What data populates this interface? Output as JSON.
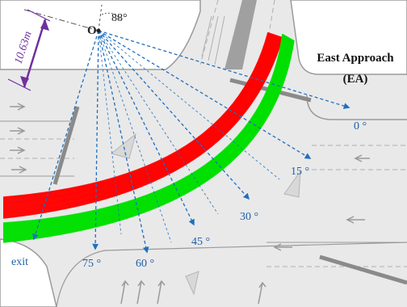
{
  "origin": {
    "label": "O",
    "angle_label": "88°"
  },
  "distance": {
    "label": "10.63m",
    "color": "#7030A0"
  },
  "approach": {
    "line1": "East Approach",
    "line2": "(EA)"
  },
  "exit_label": "exit",
  "angles": [
    {
      "label": "0 °"
    },
    {
      "label": "15 °"
    },
    {
      "label": "30 °"
    },
    {
      "label": "45 °"
    },
    {
      "label": "60 °"
    },
    {
      "label": "75 °"
    }
  ],
  "colors": {
    "ray": "#1F6FC0",
    "angle_text": "#1F5FA8",
    "red_trajectories": "#FF0000",
    "green_trajectories": "#00E000",
    "road_line": "#8A8A8A"
  }
}
